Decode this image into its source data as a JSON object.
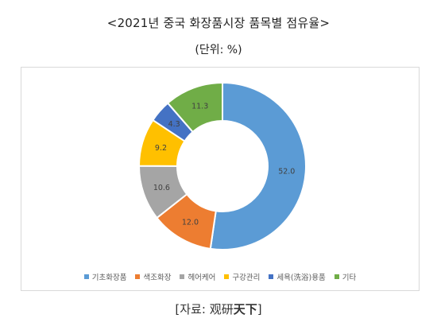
{
  "title": "<2021년 중국 화장품시장 품목별 점유율>",
  "subtitle": "(단위: %)",
  "chart_data": {
    "type": "pie",
    "donut": true,
    "categories": [
      "기초화장품",
      "색조화장",
      "헤어케어",
      "구강관리",
      "세욕(洗浴)용품",
      "기타"
    ],
    "values": [
      52.0,
      12.0,
      10.6,
      9.2,
      4.3,
      11.3
    ],
    "data_labels": [
      "52.0",
      "12.0",
      "10.6",
      "9.2",
      "4.3",
      "11.3"
    ],
    "colors": [
      "#5b9bd5",
      "#ed7d31",
      "#a5a5a5",
      "#ffc000",
      "#4472c4",
      "#70ad47"
    ],
    "legend_position": "bottom"
  },
  "source": {
    "prefix": "[자료: ",
    "name_regular": "观研",
    "name_bold": "天下",
    "suffix": "]"
  }
}
